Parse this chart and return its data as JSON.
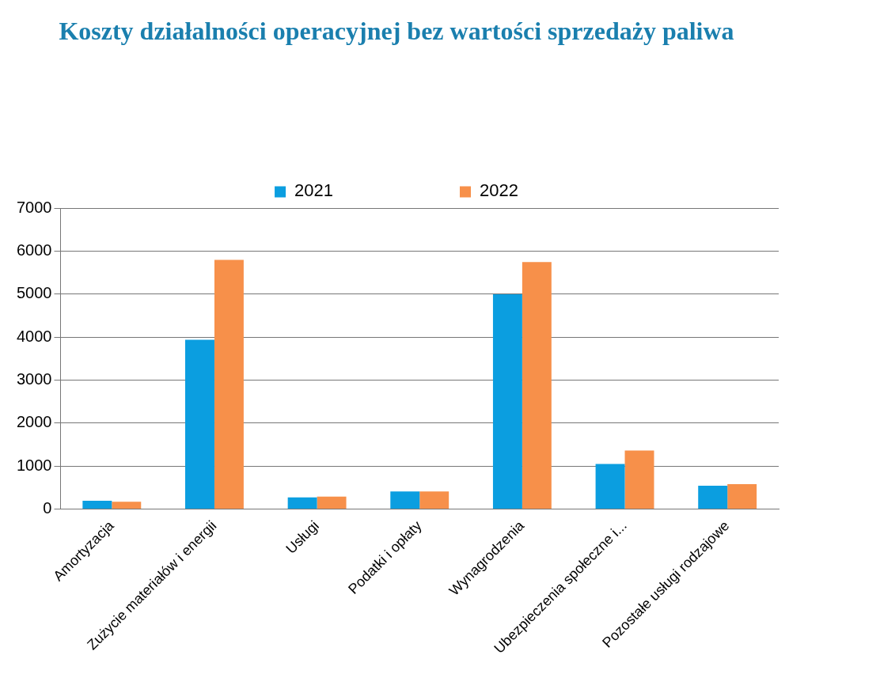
{
  "chart_data": {
    "type": "bar",
    "title": "Koszty działalności operacyjnej bez wartości sprzedaży paliwa",
    "categories": [
      "Amortyzacja",
      "Zużycie materiałów i energii",
      "Usługi",
      "Podatki i opłaty",
      "Wynagrodzenia",
      "Ubezpieczenia społeczne i...",
      "Pozostałe usługi rodzajowe"
    ],
    "series": [
      {
        "name": "2021",
        "color": "#0b9ee0",
        "values": [
          190,
          3940,
          270,
          410,
          5000,
          1050,
          540
        ]
      },
      {
        "name": "2022",
        "color": "#f7904a",
        "values": [
          170,
          5800,
          290,
          410,
          5750,
          1360,
          580
        ]
      }
    ],
    "ylim": [
      0,
      7000
    ],
    "yticks": [
      0,
      1000,
      2000,
      3000,
      4000,
      5000,
      6000,
      7000
    ],
    "grid": "y",
    "legend": "top"
  }
}
